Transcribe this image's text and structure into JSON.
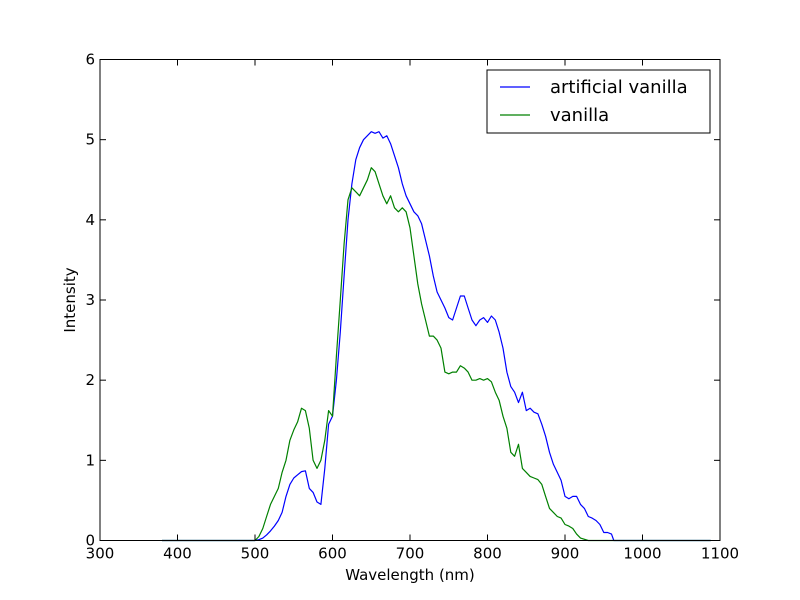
{
  "chart_data": {
    "type": "line",
    "title": "",
    "xlabel": "Wavelength (nm)",
    "ylabel": "Intensity",
    "xlim": [
      300,
      1100
    ],
    "ylim": [
      0,
      6
    ],
    "xticks": [
      300,
      400,
      500,
      600,
      700,
      800,
      900,
      1000,
      1100
    ],
    "yticks": [
      0,
      1,
      2,
      3,
      4,
      5,
      6
    ],
    "grid": false,
    "legend_position": "upper-right",
    "series": [
      {
        "name": "artificial vanilla",
        "color": "#0000ff",
        "x": [
          380,
          450,
          500,
          505,
          510,
          515,
          520,
          525,
          530,
          535,
          540,
          545,
          550,
          555,
          560,
          565,
          570,
          575,
          580,
          585,
          590,
          595,
          600,
          605,
          610,
          615,
          620,
          625,
          630,
          635,
          640,
          645,
          650,
          655,
          660,
          665,
          670,
          675,
          680,
          685,
          690,
          695,
          700,
          705,
          710,
          715,
          720,
          725,
          730,
          735,
          740,
          745,
          750,
          755,
          760,
          765,
          770,
          775,
          780,
          785,
          790,
          795,
          800,
          805,
          810,
          815,
          820,
          825,
          830,
          835,
          840,
          845,
          850,
          855,
          860,
          865,
          870,
          875,
          880,
          885,
          890,
          895,
          900,
          905,
          910,
          915,
          920,
          925,
          930,
          935,
          940,
          945,
          950,
          955,
          960,
          963,
          970,
          1000,
          1088
        ],
        "y": [
          0,
          0,
          0,
          0.01,
          0.03,
          0.07,
          0.12,
          0.18,
          0.25,
          0.35,
          0.55,
          0.7,
          0.78,
          0.82,
          0.86,
          0.87,
          0.65,
          0.6,
          0.48,
          0.45,
          0.9,
          1.45,
          1.55,
          2.0,
          2.6,
          3.3,
          4.0,
          4.45,
          4.75,
          4.9,
          5.0,
          5.05,
          5.1,
          5.08,
          5.1,
          5.02,
          5.05,
          4.95,
          4.8,
          4.65,
          4.45,
          4.3,
          4.2,
          4.1,
          4.05,
          3.95,
          3.75,
          3.55,
          3.3,
          3.1,
          3.0,
          2.9,
          2.78,
          2.75,
          2.9,
          3.05,
          3.05,
          2.9,
          2.75,
          2.68,
          2.75,
          2.78,
          2.72,
          2.8,
          2.75,
          2.6,
          2.4,
          2.1,
          1.92,
          1.85,
          1.72,
          1.85,
          1.62,
          1.65,
          1.6,
          1.58,
          1.45,
          1.3,
          1.1,
          0.95,
          0.85,
          0.75,
          0.55,
          0.52,
          0.55,
          0.55,
          0.45,
          0.4,
          0.3,
          0.28,
          0.25,
          0.2,
          0.1,
          0.1,
          0.08,
          0,
          0,
          0,
          0
        ]
      },
      {
        "name": "vanilla",
        "color": "#008000",
        "x": [
          380,
          450,
          500,
          505,
          510,
          515,
          520,
          525,
          530,
          535,
          540,
          545,
          550,
          555,
          560,
          565,
          570,
          575,
          580,
          585,
          590,
          595,
          600,
          605,
          610,
          615,
          620,
          625,
          630,
          635,
          640,
          645,
          650,
          655,
          660,
          665,
          670,
          675,
          680,
          685,
          690,
          695,
          700,
          705,
          710,
          715,
          720,
          725,
          730,
          735,
          740,
          745,
          750,
          755,
          760,
          765,
          770,
          775,
          780,
          785,
          790,
          795,
          800,
          805,
          810,
          815,
          820,
          825,
          830,
          835,
          840,
          845,
          850,
          855,
          860,
          865,
          870,
          875,
          880,
          885,
          890,
          895,
          900,
          905,
          910,
          915,
          920,
          930,
          1000,
          1088
        ],
        "y": [
          0,
          0,
          0,
          0.05,
          0.15,
          0.3,
          0.45,
          0.55,
          0.65,
          0.85,
          1.0,
          1.25,
          1.38,
          1.48,
          1.65,
          1.62,
          1.4,
          1.0,
          0.9,
          1.0,
          1.25,
          1.62,
          1.55,
          2.3,
          3.0,
          3.7,
          4.25,
          4.4,
          4.35,
          4.3,
          4.4,
          4.5,
          4.65,
          4.6,
          4.45,
          4.3,
          4.2,
          4.3,
          4.15,
          4.1,
          4.15,
          4.1,
          3.9,
          3.55,
          3.2,
          2.95,
          2.75,
          2.55,
          2.55,
          2.5,
          2.4,
          2.1,
          2.08,
          2.1,
          2.1,
          2.18,
          2.15,
          2.1,
          2.0,
          2.0,
          2.02,
          2.0,
          2.02,
          1.98,
          1.85,
          1.75,
          1.55,
          1.4,
          1.1,
          1.05,
          1.2,
          0.9,
          0.85,
          0.8,
          0.78,
          0.76,
          0.7,
          0.55,
          0.4,
          0.35,
          0.3,
          0.28,
          0.2,
          0.18,
          0.15,
          0.08,
          0.03,
          0,
          0,
          0
        ]
      }
    ]
  }
}
